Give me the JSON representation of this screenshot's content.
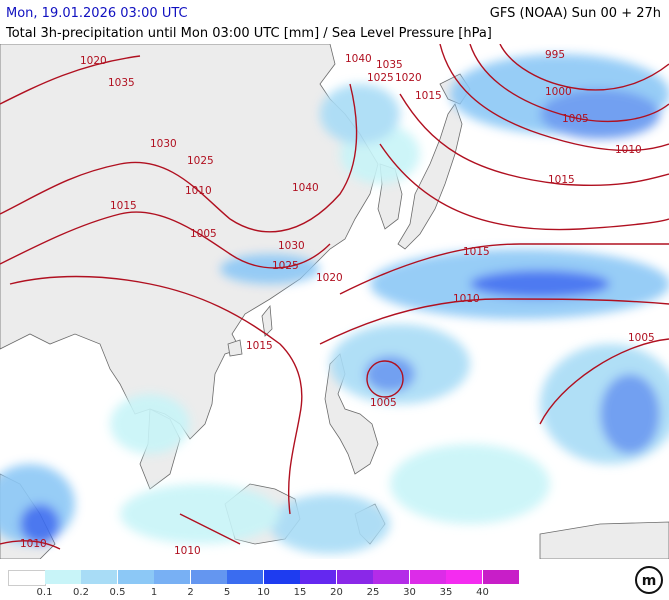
{
  "header": {
    "valid_time": "Mon, 19.01.2026 03:00 UTC",
    "model_run": "GFS (NOAA) Sun 00 + 27h",
    "product": "Total 3h-precipitation until Mon 03:00 UTC [mm] / Sea Level Pressure [hPa]"
  },
  "map": {
    "region": "East Asia / Western Pacific",
    "isobar_color": "#b01020",
    "land_color": "#ececec",
    "sea_color": "#ffffff",
    "isobar_labels": [
      "1020",
      "1035",
      "1030",
      "1025",
      "1015",
      "1010",
      "1005",
      "1040",
      "1035",
      "1025",
      "1020",
      "1015",
      "995",
      "1000",
      "1005",
      "1010",
      "1015",
      "1040",
      "1030",
      "1025",
      "1020",
      "1015",
      "1010",
      "1005",
      "1015",
      "1005",
      "1010",
      "1010"
    ],
    "storm_low_label": "1005"
  },
  "legend": {
    "ticks": [
      "0.1",
      "0.2",
      "0.5",
      "1",
      "2",
      "5",
      "10",
      "15",
      "20",
      "25",
      "30",
      "35",
      "40"
    ],
    "colors": [
      "#ffffff",
      "#c8f4f8",
      "#a8dcf6",
      "#8cc8f6",
      "#78b0f4",
      "#6496f0",
      "#3a6cf0",
      "#1e3cf0",
      "#6428f0",
      "#8a28e8",
      "#b42ce8",
      "#dc2ce8",
      "#f42cf0",
      "#c81ec8"
    ]
  },
  "logo_text": "m"
}
